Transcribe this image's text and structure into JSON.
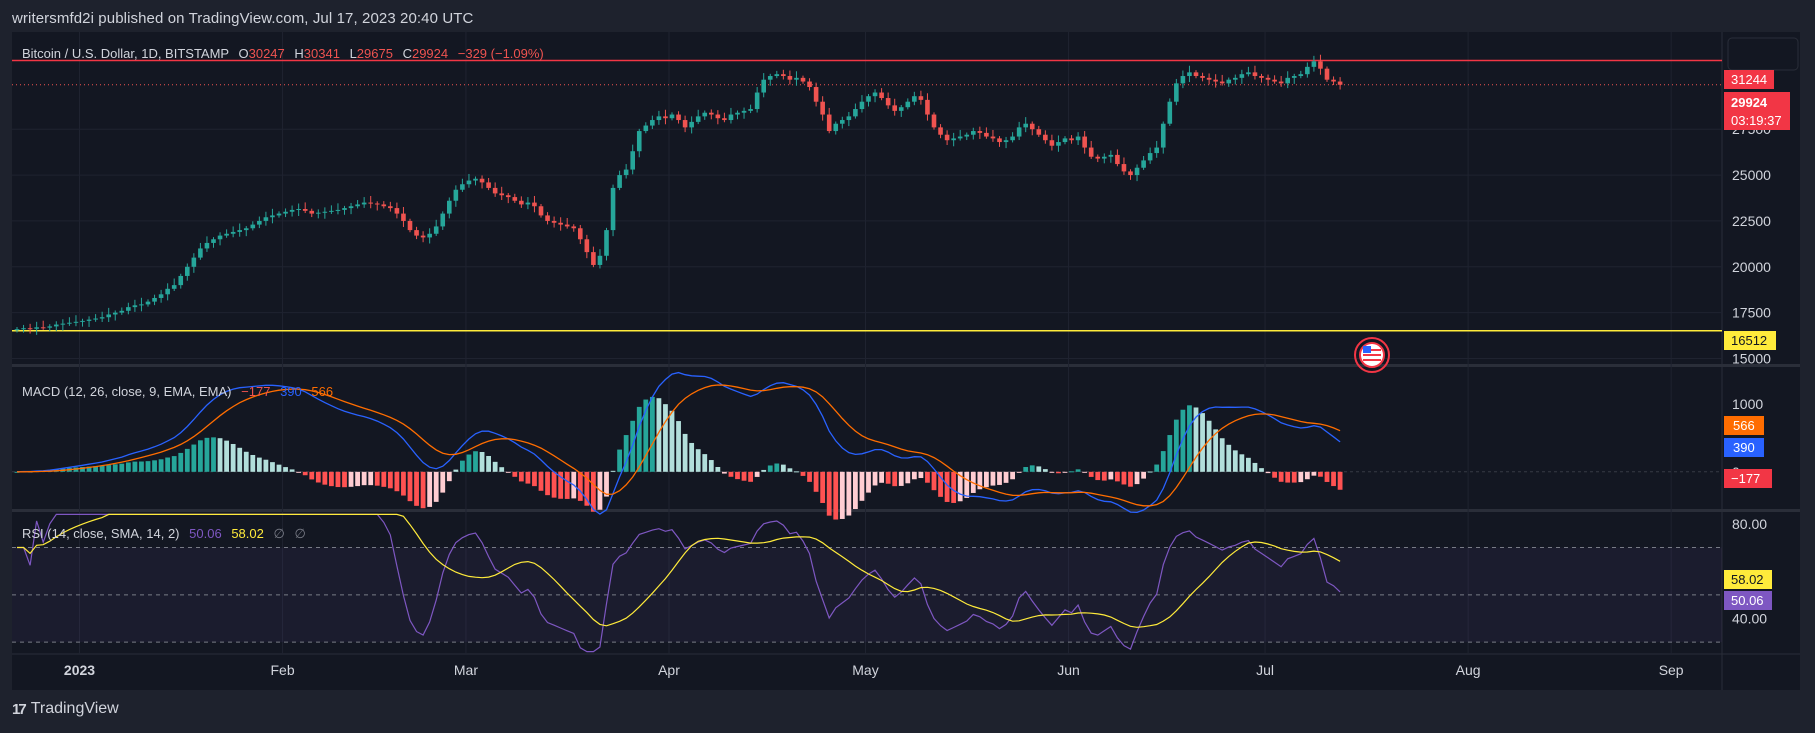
{
  "header": {
    "publish_line": "writersmfd2i published on TradingView.com, Jul 17, 2023 20:40 UTC"
  },
  "footer": {
    "brand": "TradingView",
    "logo_icon": "tradingview-logo-icon"
  },
  "colors": {
    "background": "#1e222d",
    "pane": "#131722",
    "up": "#26a69a",
    "down": "#ef5350",
    "resistance_line": "#f23645",
    "support_line": "#ffeb3b",
    "macd_line": "#2962ff",
    "signal_line": "#ff6d00",
    "rsi_line": "#7e57c2",
    "rsi_ma": "#ffeb3b"
  },
  "legend": {
    "symbol": "Bitcoin / U.S. Dollar, 1D, BITSTAMP",
    "o_label": "O",
    "o_value": "30247",
    "h_label": "H",
    "h_value": "30341",
    "l_label": "L",
    "l_value": "29675",
    "c_label": "C",
    "c_value": "29924",
    "change": "−329 (−1.09%)",
    "macd_title": "MACD (12, 26, close, 9, EMA, EMA)",
    "macd_hist": "−177",
    "macd_line": "390",
    "macd_signal": "566",
    "rsi_title": "RSI (14, close, SMA, 14, 2)",
    "rsi_value": "50.06",
    "rsi_ma": "58.02",
    "rsi_extra1": "∅",
    "rsi_extra2": "∅"
  },
  "price_tags": {
    "resistance": "31244",
    "last_price": "29924",
    "countdown": "03:19:37",
    "support": "16512",
    "macd_signal": "566",
    "macd_line": "390",
    "macd_hist": "−177",
    "rsi_ma": "58.02",
    "rsi_value": "50.06"
  },
  "chart_data": [
    {
      "type": "candlestick",
      "title": "Bitcoin / U.S. Dollar, 1D, BITSTAMP",
      "x_ticks": [
        "2023",
        "Feb",
        "Mar",
        "Apr",
        "May",
        "Jun",
        "Jul",
        "Aug",
        "Sep"
      ],
      "y_ticks": [
        "15000",
        "17500",
        "20000",
        "22500",
        "25000",
        "27500"
      ],
      "ylim": [
        14700,
        32800
      ],
      "horizontal_lines": [
        {
          "name": "resistance",
          "value": 31244
        },
        {
          "name": "support",
          "value": 16512
        }
      ],
      "last_close": 29924,
      "closes": [
        16600,
        16650,
        16620,
        16700,
        16680,
        16750,
        16850,
        16900,
        16950,
        17000,
        17050,
        17120,
        17180,
        17250,
        17400,
        17500,
        17600,
        17800,
        17900,
        17950,
        18100,
        18300,
        18500,
        18800,
        19000,
        19500,
        20000,
        20500,
        21000,
        21300,
        21500,
        21700,
        21800,
        21900,
        22000,
        22100,
        22300,
        22500,
        22700,
        22800,
        22900,
        23000,
        23100,
        23150,
        23050,
        22900,
        22950,
        23000,
        23050,
        23100,
        23200,
        23300,
        23400,
        23500,
        23450,
        23400,
        23300,
        23200,
        22900,
        22500,
        22000,
        21700,
        21600,
        21800,
        22200,
        22900,
        23600,
        24200,
        24500,
        24700,
        24800,
        24600,
        24300,
        24000,
        23900,
        23800,
        23600,
        23400,
        23500,
        23300,
        22800,
        22500,
        22400,
        22300,
        22200,
        22100,
        21500,
        20800,
        20100,
        20600,
        22000,
        24300,
        25000,
        25300,
        26300,
        27400,
        27700,
        28000,
        28200,
        28100,
        28300,
        28000,
        27600,
        27900,
        28200,
        28400,
        28300,
        28100,
        28000,
        28300,
        28400,
        28500,
        28600,
        29500,
        30200,
        30400,
        30500,
        30400,
        30200,
        30300,
        30100,
        29800,
        29000,
        28300,
        27400,
        27800,
        28000,
        28200,
        28600,
        29000,
        29300,
        29500,
        29200,
        28800,
        28500,
        28700,
        29000,
        29300,
        29100,
        28300,
        27600,
        27200,
        26900,
        27000,
        27100,
        27200,
        27400,
        27300,
        27100,
        27000,
        26800,
        26900,
        27100,
        27600,
        27800,
        27500,
        27200,
        26900,
        26600,
        26800,
        27000,
        26900,
        27100,
        26500,
        26000,
        25900,
        26000,
        26100,
        25600,
        25200,
        25000,
        25400,
        25800,
        26200,
        26500,
        27800,
        29000,
        30000,
        30400,
        30600,
        30400,
        30300,
        30200,
        30100,
        30000,
        30200,
        30300,
        30500,
        30600,
        30400,
        30300,
        30200,
        30100,
        30000,
        30300,
        30400,
        30500,
        30900,
        31200,
        30800,
        30200,
        30100,
        29924
      ],
      "x_range_days": 254,
      "x_start": "2022-12-22"
    },
    {
      "type": "line",
      "title": "MACD (12, 26, close, 9, EMA, EMA)",
      "y_ticks": [
        "1000",
        "0"
      ],
      "series": [
        {
          "name": "MACD",
          "last": 390
        },
        {
          "name": "Signal",
          "last": 566
        },
        {
          "name": "Histogram",
          "last": -177
        }
      ]
    },
    {
      "type": "line",
      "title": "RSI (14, close, SMA, 14, 2)",
      "y_ticks": [
        "80.00",
        "40.00"
      ],
      "ylim": [
        25,
        85
      ],
      "bands": [
        70,
        50,
        30
      ],
      "series": [
        {
          "name": "RSI",
          "last": 50.06
        },
        {
          "name": "RSI-based MA",
          "last": 58.02
        }
      ]
    }
  ]
}
